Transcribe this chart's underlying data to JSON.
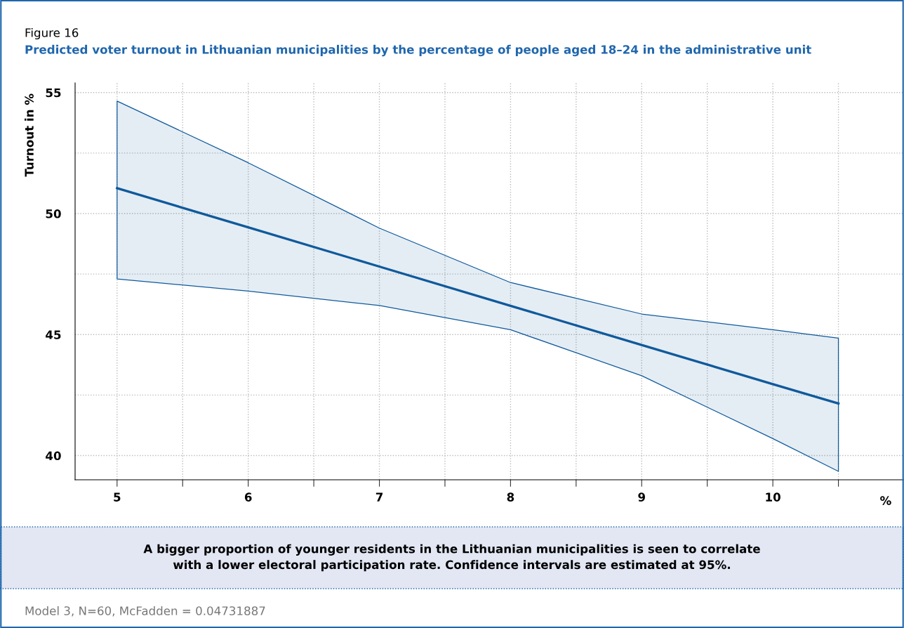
{
  "chart_data": {
    "type": "line",
    "title": "Figure 16",
    "subtitle": "Predicted voter turnout in Lithuanian municipalities by the percentage of people aged 18–24 in the administrative unit",
    "ylabel": "Turnout in %",
    "xlabel": "%",
    "series": [
      {
        "color": "#0f5a9c",
        "x": [
          5,
          6,
          7,
          8,
          9,
          10,
          10.5
        ],
        "values": [
          51.05,
          49.43,
          47.81,
          46.19,
          44.57,
          42.95,
          42.15
        ],
        "lower": [
          47.3,
          46.8,
          46.2,
          45.2,
          43.3,
          40.7,
          39.35
        ],
        "upper": [
          54.65,
          52.1,
          49.4,
          47.15,
          45.85,
          45.2,
          44.85
        ]
      }
    ],
    "xlim": [
      4.68,
      11
    ],
    "ylim": [
      39,
      55.4
    ],
    "xticks": [
      5,
      {
        "value": 5.5,
        "label": null
      },
      6,
      {
        "value": 6.5,
        "label": null
      },
      7,
      {
        "value": 7.5,
        "label": null
      },
      8,
      {
        "value": 8.5,
        "label": null
      },
      9,
      {
        "value": 9.5,
        "label": null
      },
      10,
      {
        "value": 10.5,
        "label": null
      }
    ],
    "yticks": [
      40,
      {
        "value": 42.5,
        "label": null
      },
      45,
      {
        "value": 47.5,
        "label": null
      },
      50,
      {
        "value": 52.5,
        "label": null
      },
      55
    ],
    "grid": true,
    "legend": false,
    "marker": "none",
    "line_style": "solid",
    "annotations": [
      "A bigger proportion of younger residents in the Lithuanian municipalities is seen to correlate\nwith a lower electoral participation rate. Confidence intervals are estimated at 95%.",
      "Model 3, N=60, McFadden = 0.04731887"
    ]
  }
}
